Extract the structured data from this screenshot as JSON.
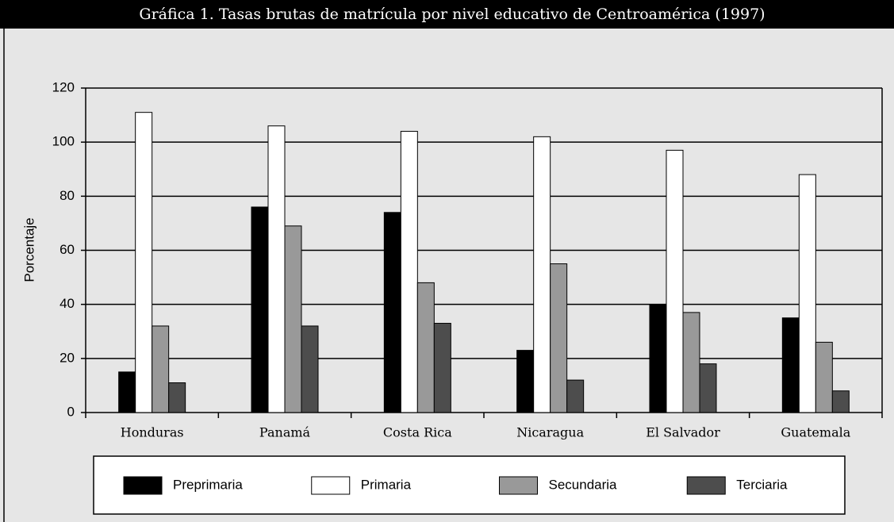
{
  "chart_data": {
    "type": "bar",
    "title": "Gráfica 1.  Tasas brutas de matrícula por nivel educativo de Centroamérica (1997)",
    "y_label": "Porcentaje",
    "categories": [
      "Honduras",
      "Panamá",
      "Costa Rica",
      "Nicaragua",
      "El Salvador",
      "Guatemala"
    ],
    "series": [
      {
        "name": "Preprimaria",
        "color": "#000000",
        "values": [
          15,
          76,
          74,
          23,
          40,
          35
        ]
      },
      {
        "name": "Primaria",
        "color": "#ffffff",
        "values": [
          111,
          106,
          104,
          102,
          97,
          88
        ]
      },
      {
        "name": "Secundaria",
        "color": "#999999",
        "values": [
          32,
          69,
          48,
          55,
          37,
          26
        ]
      },
      {
        "name": "Terciaria",
        "color": "#4d4d4d",
        "values": [
          11,
          32,
          33,
          12,
          18,
          8
        ]
      }
    ],
    "ylim": [
      0,
      120
    ],
    "yticks": [
      0,
      20,
      40,
      60,
      80,
      100,
      120
    ],
    "grid": true,
    "legend": "bottom"
  }
}
